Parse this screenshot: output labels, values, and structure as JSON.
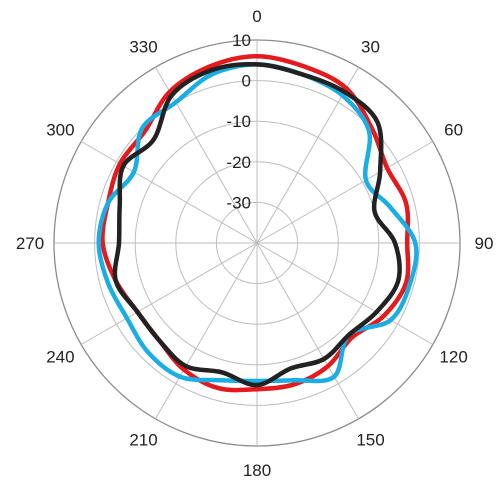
{
  "chart_data": {
    "type": "line",
    "subtype": "polar",
    "title": "",
    "angle_unit": "degrees",
    "angle_direction": "clockwise",
    "zero_location": "top",
    "angular_ticks": [
      "0",
      "30",
      "60",
      "90",
      "120",
      "150",
      "180",
      "210",
      "240",
      "270",
      "300",
      "330"
    ],
    "radial_ticks": [
      "-30",
      "-20",
      "-10",
      "0",
      "10"
    ],
    "radial_range": [
      -40,
      10
    ],
    "grid": true,
    "legend": "none",
    "series": [
      {
        "color": "#e41a1c",
        "theta": [
          0,
          15,
          30,
          45,
          60,
          75,
          90,
          105,
          120,
          135,
          150,
          165,
          180,
          195,
          210,
          225,
          240,
          255,
          270,
          285,
          300,
          315,
          330,
          345
        ],
        "r": [
          6,
          5,
          4,
          0,
          -3,
          -2,
          -3,
          -2,
          -4,
          -7,
          -5,
          -4,
          -4,
          -3,
          -4,
          -6,
          -6,
          -4,
          -2,
          -2,
          -1,
          -1,
          3,
          5
        ]
      },
      {
        "color": "#1aaee5",
        "theta": [
          0,
          15,
          30,
          45,
          60,
          75,
          90,
          105,
          120,
          135,
          150,
          165,
          180,
          195,
          210,
          225,
          240,
          255,
          270,
          285,
          300,
          315,
          330,
          345
        ],
        "r": [
          4,
          3,
          2,
          -1,
          -9,
          -6,
          -1,
          -1,
          -2,
          -8,
          -2,
          -5,
          -6,
          -5,
          -2,
          -2,
          -3,
          -2,
          -1,
          -2,
          -5,
          0,
          0,
          3
        ]
      },
      {
        "color": "#222222",
        "theta": [
          0,
          15,
          30,
          45,
          60,
          75,
          90,
          105,
          120,
          135,
          150,
          165,
          180,
          195,
          210,
          225,
          240,
          255,
          270,
          285,
          300,
          315,
          330,
          345
        ],
        "r": [
          4,
          3,
          3,
          2,
          -5,
          -10,
          -6,
          -4,
          -6,
          -8,
          -7,
          -8,
          -5,
          -7,
          -5,
          -6,
          -6,
          -4,
          -6,
          -5,
          -2,
          -4,
          2,
          4
        ]
      }
    ]
  }
}
